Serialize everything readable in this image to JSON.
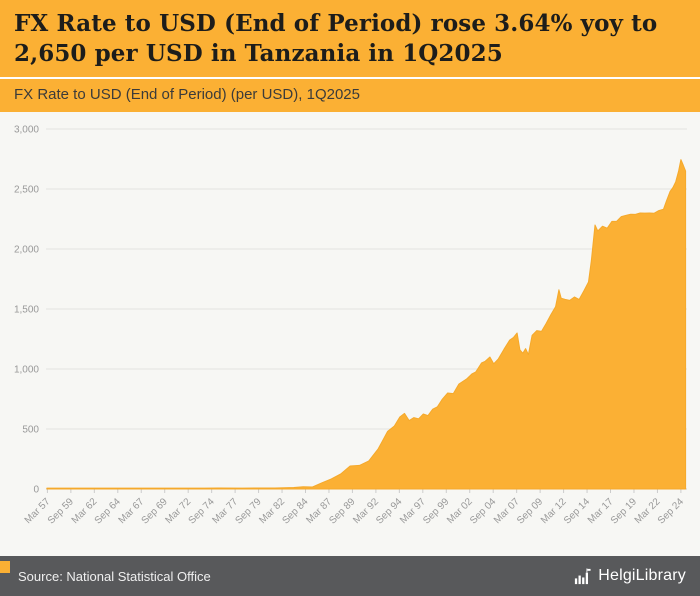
{
  "header": {
    "title": "FX Rate to USD (End of Period) rose 3.64% yoy to 2,650 per USD in Tanzania in 1Q2025",
    "subtitle": "FX Rate to USD (End of Period) (per USD), 1Q2025"
  },
  "footer": {
    "source": "Source: National Statistical Office",
    "logo_text": "HelgiLibrary"
  },
  "colors": {
    "accent": "#FBB034",
    "area_stroke": "#F5A92B",
    "footer_bg": "#58595B",
    "grid_color": "#E3E3DF",
    "zero_line_color": "#CFCFCC",
    "tick_color": "#999999",
    "chart_bg": "#F7F7F4",
    "title_color": "#1D1D1B"
  },
  "chart_data": {
    "type": "area",
    "title": "FX Rate to USD (End of Period) (per USD), 1Q2025",
    "series_name": "FX Rate to USD (End of Period), Tanzania",
    "xlabel": "",
    "ylabel": "",
    "grid": true,
    "legend_position": "none",
    "ylim": [
      0,
      3000
    ],
    "y_ticks": [
      0,
      500,
      1000,
      1500,
      2000,
      2500,
      3000
    ],
    "y_tick_labels": [
      "0",
      "500",
      "1,000",
      "1,500",
      "2,000",
      "2,500",
      "3,000"
    ],
    "x_range": [
      1957.1,
      2025.4
    ],
    "x_tick_years": [
      1957.25,
      1959.75,
      1962.25,
      1964.75,
      1967.25,
      1969.75,
      1972.25,
      1974.75,
      1977.25,
      1979.75,
      1982.25,
      1984.75,
      1987.25,
      1989.75,
      1992.25,
      1994.75,
      1997.25,
      1999.75,
      2002.25,
      2004.75,
      2007.25,
      2009.75,
      2012.25,
      2014.75,
      2017.25,
      2019.75,
      2022.25,
      2024.75
    ],
    "x_tick_labels": [
      "Mar 57",
      "Sep 59",
      "Mar 62",
      "Sep 64",
      "Mar 67",
      "Sep 69",
      "Mar 72",
      "Sep 74",
      "Mar 77",
      "Sep 79",
      "Mar 82",
      "Sep 84",
      "Mar 87",
      "Sep 89",
      "Mar 92",
      "Sep 94",
      "Mar 97",
      "Sep 99",
      "Mar 02",
      "Sep 04",
      "Mar 07",
      "Sep 09",
      "Mar 12",
      "Sep 14",
      "Mar 17",
      "Sep 19",
      "Mar 22",
      "Sep 24"
    ],
    "x": [
      1957.2,
      1960,
      1963,
      1966,
      1969,
      1972,
      1974,
      1975.5,
      1978,
      1980,
      1981.5,
      1982.5,
      1983.5,
      1984.5,
      1985.5,
      1986.5,
      1987.5,
      1988.5,
      1989.5,
      1990.5,
      1991.5,
      1992.5,
      1993.5,
      1994.2,
      1994.8,
      1995.3,
      1995.8,
      1996.3,
      1996.8,
      1997.3,
      1997.8,
      1998.3,
      1998.8,
      1999.3,
      1999.9,
      2000.5,
      2001.1,
      2001.9,
      2002.5,
      2002.9,
      2003.5,
      2003.9,
      2004.4,
      2004.8,
      2005.3,
      2005.9,
      2006.5,
      2006.9,
      2007.3,
      2007.6,
      2007.9,
      2008.2,
      2008.5,
      2008.9,
      2009.4,
      2009.9,
      2010.4,
      2010.9,
      2011.4,
      2011.75,
      2012.0,
      2012.4,
      2012.9,
      2013.4,
      2013.9,
      2014.4,
      2014.9,
      2015.2,
      2015.6,
      2015.9,
      2016.4,
      2016.9,
      2017.4,
      2017.9,
      2018.4,
      2018.9,
      2019.4,
      2019.9,
      2020.4,
      2020.9,
      2021.4,
      2021.9,
      2022.4,
      2022.9,
      2023.2,
      2023.6,
      2023.9,
      2024.2,
      2024.5,
      2024.75,
      2025.0,
      2025.25
    ],
    "values": [
      7.1,
      7.1,
      7.1,
      7.1,
      7.1,
      7.1,
      7.1,
      8.3,
      7.7,
      8.2,
      8.3,
      9.6,
      12.5,
      18.1,
      16.5,
      51.7,
      83.7,
      125,
      192,
      197,
      234,
      335,
      480,
      523,
      600,
      630,
      570,
      595,
      585,
      625,
      612,
      665,
      685,
      745,
      800,
      795,
      875,
      916,
      960,
      976,
      1050,
      1064,
      1100,
      1043,
      1085,
      1165,
      1240,
      1262,
      1300,
      1160,
      1132,
      1170,
      1120,
      1280,
      1320,
      1313,
      1380,
      1453,
      1520,
      1660,
      1590,
      1580,
      1572,
      1600,
      1579,
      1650,
      1725,
      1900,
      2200,
      2150,
      2190,
      2173,
      2230,
      2230,
      2270,
      2281,
      2290,
      2288,
      2300,
      2299,
      2300,
      2298,
      2320,
      2332,
      2400,
      2480,
      2512,
      2560,
      2650,
      2745,
      2700,
      2650
    ],
    "last_value": 2650,
    "yoy_change_pct": 3.64
  }
}
